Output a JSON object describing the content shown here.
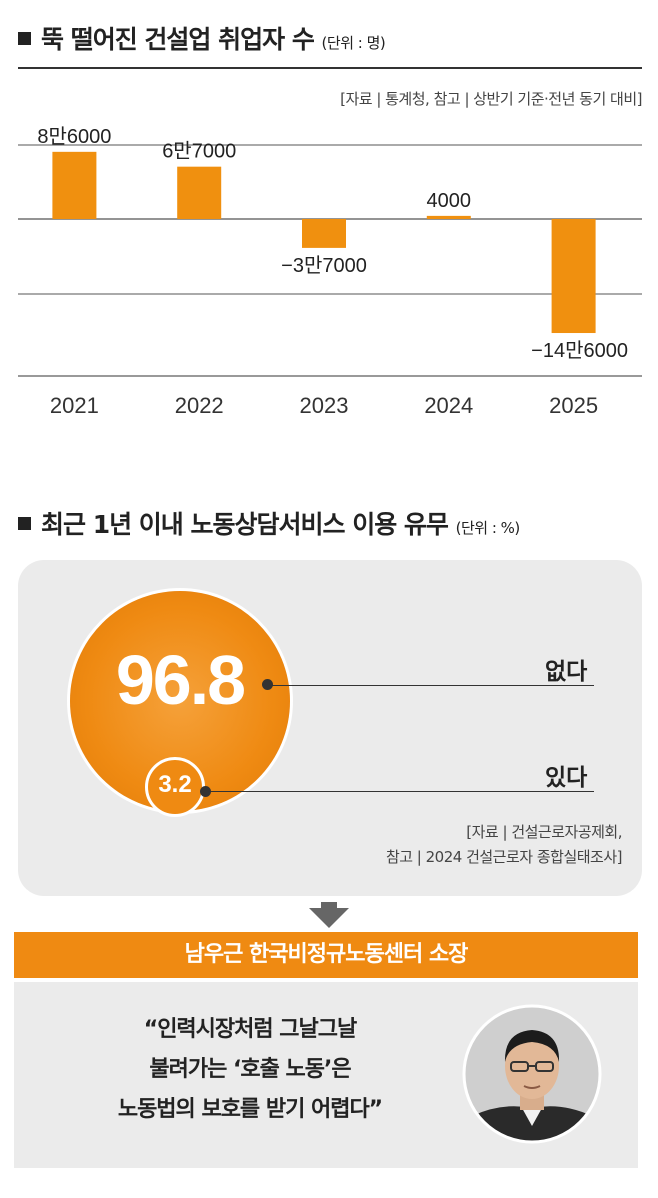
{
  "section1": {
    "title": "뚝 떨어진 건설업 취업자 수",
    "unit": "(단위 : 명)",
    "source": "[자료 | 통계청, 참고 | 상반기 기준·전년 동기 대비]"
  },
  "chart_data": {
    "type": "bar",
    "categories": [
      "2021",
      "2022",
      "2023",
      "2024",
      "2025"
    ],
    "values": [
      86000,
      67000,
      -37000,
      4000,
      -146000
    ],
    "data_labels": [
      "8만6000",
      "6만7000",
      "−3만7000",
      "4000",
      "−14만6000"
    ],
    "title": "뚝 떨어진 건설업 취업자 수",
    "xlabel": "",
    "ylabel": "",
    "grid": true,
    "colors": {
      "bar": "#f0900f"
    }
  },
  "section2": {
    "title": "최근 1년 이내 노동상담서비스 이용 유무",
    "unit": "(단위 : %)",
    "pie": [
      {
        "label": "없다",
        "value": "96.8"
      },
      {
        "label": "있다",
        "value": "3.2"
      }
    ],
    "source_line1": "[자료 | 건설근로자공제회,",
    "source_line2": "참고 | 2024 건설근로자 종합실태조사]"
  },
  "interview": {
    "name_title": "남우근 한국비정규노동센터 소장",
    "quote_line1": "“인력시장처럼 그날그날",
    "quote_line2": "불려가는 ‘호출 노동’은",
    "quote_line3": "노동법의 보호를 받기 어렵다”"
  },
  "colors": {
    "accent": "#ef8a12",
    "panel": "#ebebeb",
    "text": "#222222"
  },
  "icons": {
    "arrow": "down-arrow-icon",
    "photo": "portrait-photo"
  }
}
